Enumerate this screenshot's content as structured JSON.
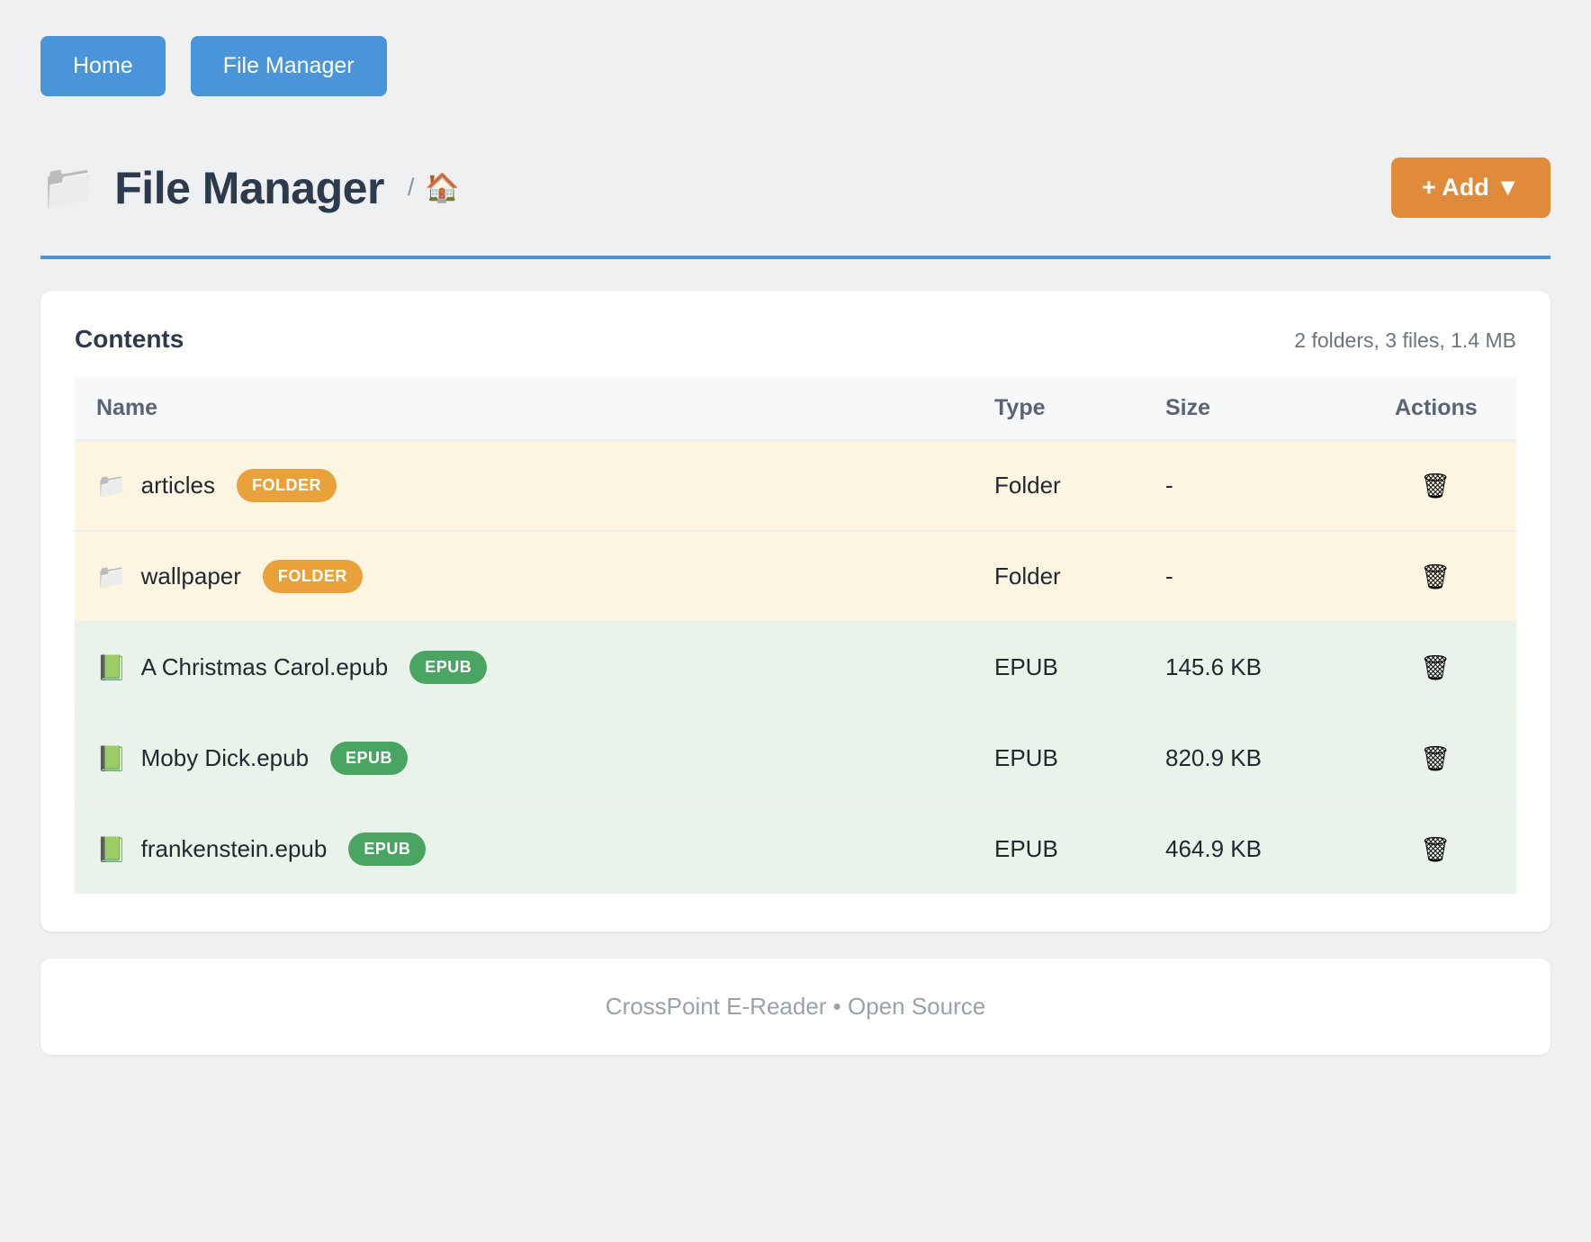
{
  "nav": {
    "home_label": "Home",
    "file_manager_label": "File Manager"
  },
  "header": {
    "title": "File Manager",
    "title_icon": "📁",
    "breadcrumb_separator": "/",
    "breadcrumb_home_icon": "🏠",
    "add_button_label": "+ Add ▼"
  },
  "contents": {
    "heading": "Contents",
    "summary": "2 folders, 3 files, 1.4 MB",
    "columns": {
      "name": "Name",
      "type": "Type",
      "size": "Size",
      "actions": "Actions"
    },
    "trash_icon": "🗑",
    "rows": [
      {
        "icon": "📁",
        "name": "articles",
        "badge": "FOLDER",
        "type": "Folder",
        "size": "-"
      },
      {
        "icon": "📁",
        "name": "wallpaper",
        "badge": "FOLDER",
        "type": "Folder",
        "size": "-"
      },
      {
        "icon": "📗",
        "name": "A Christmas Carol.epub",
        "badge": "EPUB",
        "type": "EPUB",
        "size": "145.6 KB"
      },
      {
        "icon": "📗",
        "name": "Moby Dick.epub",
        "badge": "EPUB",
        "type": "EPUB",
        "size": "820.9 KB"
      },
      {
        "icon": "📗",
        "name": "frankenstein.epub",
        "badge": "EPUB",
        "type": "EPUB",
        "size": "464.9 KB"
      }
    ]
  },
  "footer": {
    "text": "CrossPoint E-Reader • Open Source"
  },
  "colors": {
    "accent_blue": "#4a94da",
    "accent_orange": "#df8b3b",
    "badge_orange": "#e9a23b",
    "badge_green": "#4aa562",
    "row_folder_bg": "#fcf5e2",
    "row_epub_bg": "#e9f3ea"
  }
}
